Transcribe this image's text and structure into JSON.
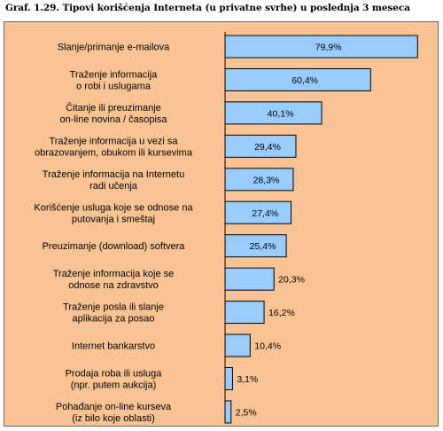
{
  "title": "Graf. 1.29. Tipovi korišćenja Interneta (u privatne svrhe) u poslednja 3 meseca",
  "colors": {
    "background": "#f9c393",
    "bar_fill": "#99ccff",
    "bar_stroke": "#000000"
  },
  "chart_data": {
    "type": "bar",
    "orientation": "horizontal",
    "xlim": [
      0,
      100
    ],
    "value_unit": "%",
    "categories": [
      "Slanje/primanje e-mailova",
      "Traženje informacija\no robi i uslugama",
      "Čitanje ili preuzimanje\non-line novina / časopisa",
      "Traženje informacija u vezi sa\nobrazovanjem, obukom ili kursevima",
      "Traženje informacija na Internetu\nradi učenja",
      "Korišćenje usluga koje se odnose na\nputovanja i smeštaj",
      "Preuzimanje (download) softvera",
      "Traženje informacija koje se\nodnose na zdravstvo",
      "Traženje posla ili slanje\naplikacija za posao",
      "Internet bankarstvo",
      "Prodaja roba ili usluga\n(npr. putem aukcija)",
      "Pohađanje on-line kurseva\n(iz bilo koje oblasti)"
    ],
    "values": [
      79.9,
      60.4,
      40.1,
      29.4,
      28.3,
      27.4,
      25.4,
      20.3,
      16.2,
      10.4,
      3.1,
      2.5
    ],
    "labels": [
      "79,9%",
      "60,4%",
      "40,1%",
      "29,4%",
      "28,3%",
      "27,4%",
      "25,4%",
      "20,3%",
      "16,2%",
      "10,4%",
      "3,1%",
      "2,5%"
    ]
  }
}
